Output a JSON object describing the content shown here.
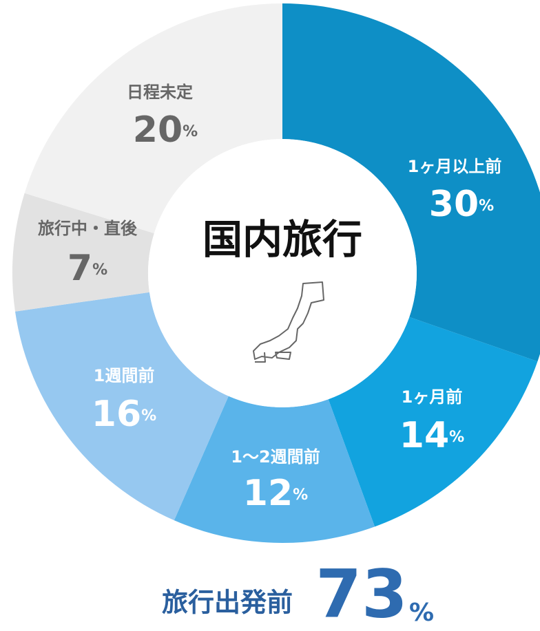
{
  "chart_data": {
    "type": "donut",
    "title": "国内旅行",
    "unit": "%",
    "categories": [
      "1ヶ月以上前",
      "1ヶ月前",
      "1〜2週間前",
      "1週間前",
      "旅行中・直後",
      "日程未定"
    ],
    "values": [
      30,
      14,
      12,
      16,
      7,
      20
    ],
    "colors": [
      "#0e8fc6",
      "#12a3df",
      "#5ab4ea",
      "#96c8f0",
      "#e2e2e2",
      "#f1f1f1"
    ],
    "annotation": {
      "text": "旅行出発前",
      "value": 73
    }
  }
}
